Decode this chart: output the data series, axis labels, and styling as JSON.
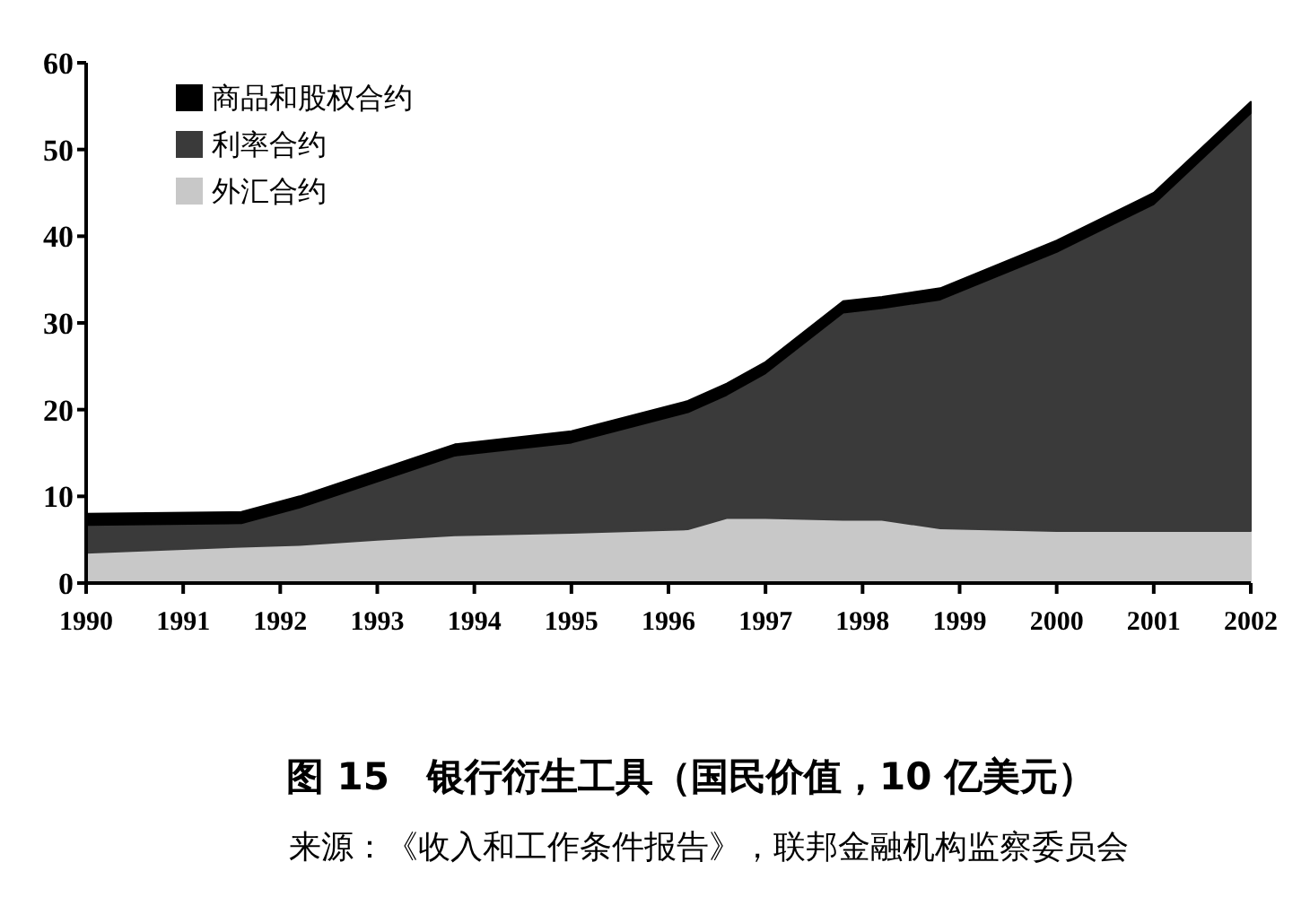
{
  "chart_data": {
    "type": "area",
    "stacked": true,
    "title": "图 15　银行衍生工具（国民价值，10 亿美元）",
    "annotations": [
      "来源：《收入和工作条件报告》，联邦金融机构监察委员会"
    ],
    "x": [
      1990,
      1991.6,
      1992.2,
      1993,
      1993.8,
      1995,
      1996.2,
      1996.6,
      1997,
      1997.8,
      1998.2,
      1998.8,
      2000,
      2001,
      2002
    ],
    "series": [
      {
        "name": "外汇合约",
        "color": "#c8c8c8",
        "values": [
          3.5,
          4.2,
          4.4,
          5.0,
          5.5,
          5.8,
          6.2,
          7.5,
          7.5,
          7.3,
          7.3,
          6.3,
          6.0,
          6.0,
          6.0
        ]
      },
      {
        "name": "利率合约",
        "color": "#3a3a3a",
        "values": [
          3.2,
          2.7,
          4.3,
          6.7,
          9.2,
          10.4,
          13.5,
          14.2,
          16.7,
          23.9,
          24.4,
          26.4,
          32.2,
          37.7,
          48.2
        ]
      },
      {
        "name": "商品和股权合约",
        "color": "#000000",
        "values": [
          1.3,
          1.3,
          1.3,
          1.3,
          1.3,
          1.3,
          1.3,
          1.3,
          1.3,
          1.3,
          1.3,
          1.3,
          1.3,
          1.3,
          1.3
        ]
      }
    ],
    "xlim": [
      1990,
      2002
    ],
    "xticks": [
      1990,
      1991,
      1992,
      1993,
      1994,
      1995,
      1996,
      1997,
      1998,
      1999,
      2000,
      2001,
      2002
    ],
    "ylim": [
      0,
      60
    ],
    "yticks": [
      0,
      10,
      20,
      30,
      40,
      50,
      60
    ],
    "grid": false,
    "legend": "top left"
  }
}
